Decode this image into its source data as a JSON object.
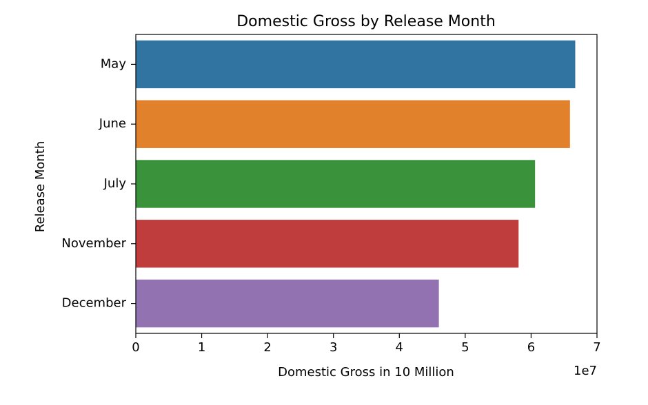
{
  "chart_data": {
    "type": "bar",
    "orientation": "horizontal",
    "title": "Domestic Gross by Release Month",
    "xlabel": "Domestic Gross in 10 Million",
    "ylabel": "Release Month",
    "x_offset_text": "1e7",
    "categories": [
      "May",
      "June",
      "July",
      "November",
      "December"
    ],
    "values": [
      66700000,
      65900000,
      60600000,
      58100000,
      46000000
    ],
    "colors": [
      "#3274a1",
      "#e1812c",
      "#3a923a",
      "#c03d3e",
      "#9372b2"
    ],
    "xlim": [
      0,
      70000000
    ],
    "xticks": [
      0,
      10000000,
      20000000,
      30000000,
      40000000,
      50000000,
      60000000,
      70000000
    ],
    "xtick_labels": [
      "0",
      "1",
      "2",
      "3",
      "4",
      "5",
      "6",
      "7"
    ],
    "grid": false,
    "legend": "none"
  }
}
